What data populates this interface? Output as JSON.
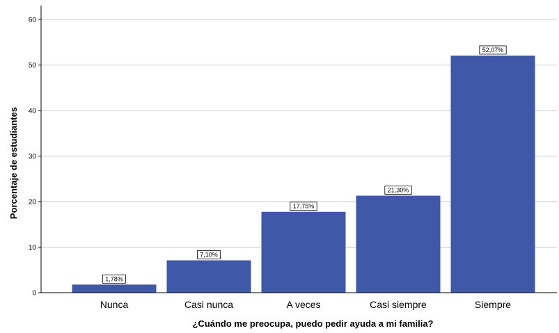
{
  "chart_data": {
    "type": "bar",
    "categories": [
      "Nunca",
      "Casi nunca",
      "A veces",
      "Casi siempre",
      "Siempre"
    ],
    "values": [
      1.78,
      7.1,
      17.75,
      21.3,
      52.07
    ],
    "data_labels": [
      "1,78%",
      "7,10%",
      "17,75%",
      "21,30%",
      "52,07%"
    ],
    "title": "",
    "xlabel": "¿Cuándo me preocupa, puedo pedir ayuda a mi familia?",
    "ylabel": "Porcentaje de estudiantes",
    "ylim": [
      0,
      60
    ],
    "yticks": [
      0,
      10,
      20,
      30,
      40,
      50,
      60
    ],
    "grid": true,
    "legend": "none",
    "colors": {
      "bar": "#3f58a7",
      "grid": "#c8c8c8",
      "axis": "#000000"
    }
  }
}
